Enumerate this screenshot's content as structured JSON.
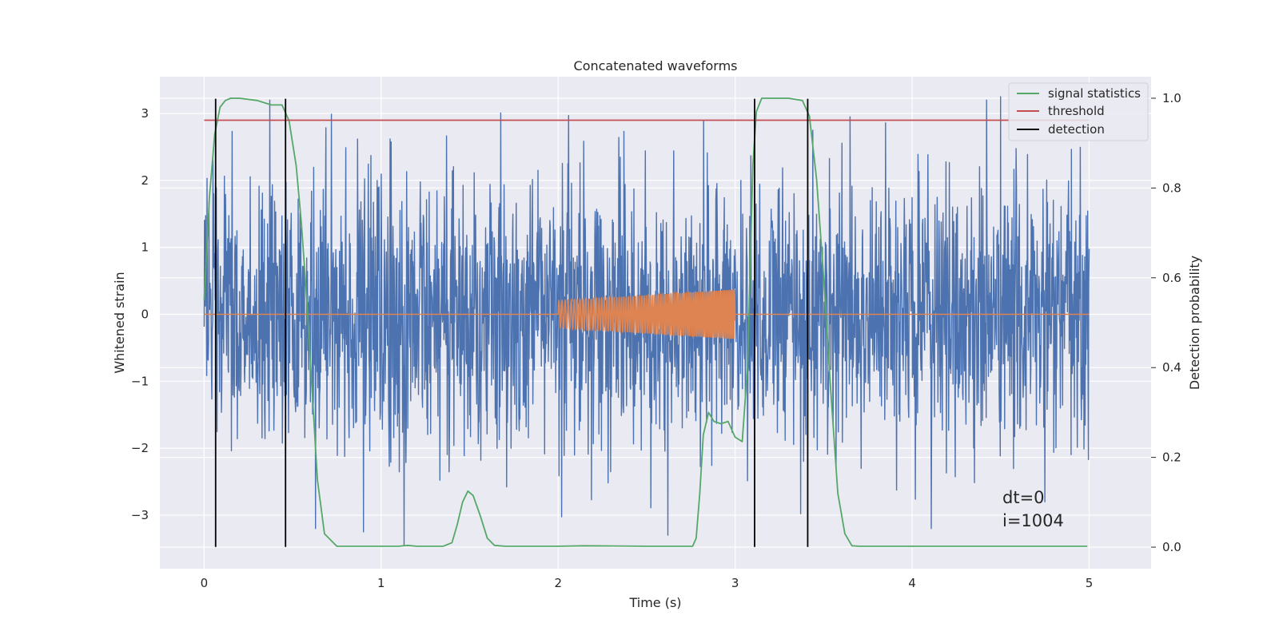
{
  "chart_data": {
    "type": "line",
    "title": "Concatenated waveforms",
    "xlabel": "Time (s)",
    "ylabel_left": "Whitened strain",
    "ylabel_right": "Detection probability",
    "xlim": [
      -0.25,
      5.35
    ],
    "ylim_left": [
      -3.8,
      3.55
    ],
    "ylim_right": [
      -0.048,
      1.048
    ],
    "x_ticks": [
      0,
      1,
      2,
      3,
      4,
      5
    ],
    "y_ticks_left": [
      -3,
      -2,
      -1,
      0,
      1,
      2,
      3
    ],
    "y_ticks_right": [
      0.0,
      0.2,
      0.4,
      0.6,
      0.8,
      1.0
    ],
    "grid": true,
    "legend_position": "top-right",
    "legend": [
      {
        "label": "signal statistics",
        "color": "#55a868"
      },
      {
        "label": "threshold",
        "color": "#c44e52"
      },
      {
        "label": "detection",
        "color": "#000000"
      }
    ],
    "series": [
      {
        "name": "signal statistics",
        "axis": "right",
        "color": "#55a868",
        "x": [
          0.0,
          0.03,
          0.06,
          0.09,
          0.12,
          0.15,
          0.2,
          0.3,
          0.38,
          0.44,
          0.48,
          0.52,
          0.55,
          0.58,
          0.61,
          0.64,
          0.68,
          0.75,
          1.0,
          1.1,
          1.15,
          1.2,
          1.35,
          1.4,
          1.43,
          1.46,
          1.49,
          1.52,
          1.56,
          1.6,
          1.64,
          1.7,
          2.0,
          2.15,
          2.5,
          2.76,
          2.78,
          2.8,
          2.82,
          2.85,
          2.88,
          2.92,
          2.96,
          3.0,
          3.04,
          3.07,
          3.1,
          3.12,
          3.15,
          3.2,
          3.3,
          3.38,
          3.42,
          3.46,
          3.5,
          3.54,
          3.58,
          3.62,
          3.66,
          3.7,
          4.0,
          4.5,
          4.99
        ],
        "y": [
          0.55,
          0.78,
          0.92,
          0.98,
          0.995,
          1.0,
          1.0,
          0.995,
          0.985,
          0.985,
          0.95,
          0.85,
          0.72,
          0.55,
          0.35,
          0.15,
          0.03,
          0.002,
          0.002,
          0.002,
          0.004,
          0.002,
          0.002,
          0.01,
          0.05,
          0.1,
          0.125,
          0.115,
          0.07,
          0.02,
          0.004,
          0.002,
          0.002,
          0.003,
          0.002,
          0.002,
          0.02,
          0.12,
          0.25,
          0.3,
          0.28,
          0.275,
          0.28,
          0.245,
          0.235,
          0.4,
          0.85,
          0.97,
          1.0,
          1.0,
          1.0,
          0.995,
          0.96,
          0.82,
          0.6,
          0.35,
          0.12,
          0.03,
          0.003,
          0.002,
          0.002,
          0.002,
          0.002
        ]
      },
      {
        "name": "threshold",
        "axis": "left",
        "color": "#c44e52",
        "x": [
          0.0,
          5.0
        ],
        "y": [
          2.9,
          2.9
        ]
      }
    ],
    "detection_lines": {
      "color": "#000000",
      "x": [
        0.065,
        0.46,
        3.11,
        3.41
      ],
      "y_range": [
        -3.475,
        3.22
      ]
    },
    "whitened_strain": {
      "color": "#4c72b0",
      "x_range": [
        0.0,
        5.0
      ],
      "samples": 2400,
      "typical_amplitude": 1.0,
      "peak_values": [
        {
          "x": 0.05,
          "y": 2.3
        },
        {
          "x": 0.72,
          "y": 2.99
        },
        {
          "x": 0.9,
          "y": -3.25
        },
        {
          "x": 1.13,
          "y": -3.45
        },
        {
          "x": 2.06,
          "y": 2.97
        },
        {
          "x": 2.62,
          "y": -3.3
        },
        {
          "x": 3.65,
          "y": 2.95
        },
        {
          "x": 4.5,
          "y": 3.25
        },
        {
          "x": 4.75,
          "y": -2.8
        }
      ]
    },
    "injected_waveform": {
      "color": "#dd8452",
      "x_range": [
        0.0,
        5.0
      ],
      "chirp_start": 2.0,
      "chirp_end": 3.0,
      "amp_start": 0.2,
      "amp_end": 0.37,
      "freq_start": 55,
      "freq_end": 110
    },
    "annotations": [
      "dt=0",
      "i=1004"
    ]
  }
}
